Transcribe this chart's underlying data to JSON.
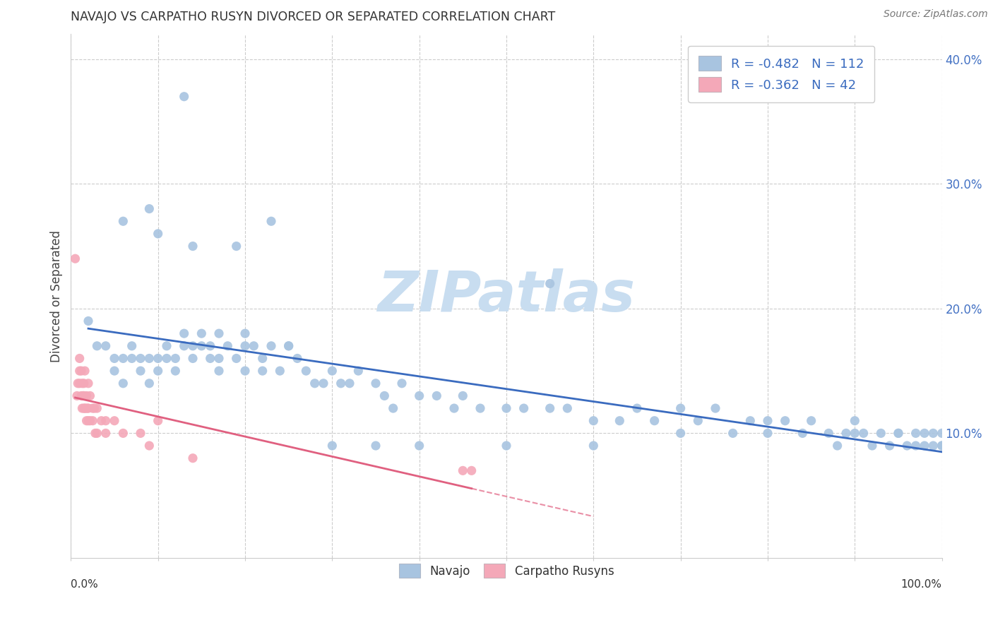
{
  "title": "NAVAJO VS CARPATHO RUSYN DIVORCED OR SEPARATED CORRELATION CHART",
  "source": "Source: ZipAtlas.com",
  "ylabel": "Divorced or Separated",
  "xlim": [
    0.0,
    1.0
  ],
  "ylim": [
    0.0,
    0.42
  ],
  "ytick_vals": [
    0.0,
    0.1,
    0.2,
    0.3,
    0.4
  ],
  "ytick_labels": [
    "",
    "10.0%",
    "20.0%",
    "30.0%",
    "40.0%"
  ],
  "legend_line1": "R = -0.482   N = 112",
  "legend_line2": "R = -0.362   N = 42",
  "navajo_color": "#a8c4e0",
  "rusyn_color": "#f4a8b8",
  "navajo_line_color": "#3a6bbf",
  "rusyn_line_color": "#e06080",
  "grid_color": "#cccccc",
  "background_color": "#ffffff",
  "watermark_color": "#c8ddf0",
  "title_color": "#333333",
  "ytick_color": "#4472c4",
  "source_color": "#777777",
  "navajo_x": [
    0.02,
    0.03,
    0.04,
    0.05,
    0.05,
    0.06,
    0.06,
    0.07,
    0.07,
    0.08,
    0.08,
    0.09,
    0.09,
    0.1,
    0.1,
    0.11,
    0.11,
    0.12,
    0.12,
    0.13,
    0.13,
    0.14,
    0.14,
    0.15,
    0.15,
    0.16,
    0.16,
    0.17,
    0.17,
    0.18,
    0.19,
    0.2,
    0.2,
    0.21,
    0.22,
    0.22,
    0.23,
    0.24,
    0.25,
    0.26,
    0.27,
    0.28,
    0.29,
    0.3,
    0.31,
    0.32,
    0.33,
    0.35,
    0.36,
    0.37,
    0.38,
    0.4,
    0.42,
    0.44,
    0.45,
    0.47,
    0.5,
    0.52,
    0.55,
    0.57,
    0.6,
    0.63,
    0.65,
    0.67,
    0.7,
    0.72,
    0.74,
    0.76,
    0.78,
    0.8,
    0.82,
    0.84,
    0.85,
    0.87,
    0.88,
    0.89,
    0.9,
    0.91,
    0.92,
    0.93,
    0.94,
    0.95,
    0.96,
    0.97,
    0.97,
    0.98,
    0.98,
    0.99,
    0.99,
    1.0,
    1.0,
    1.0,
    0.13,
    0.55,
    0.06,
    0.1,
    0.19,
    0.23,
    0.09,
    0.14,
    0.17,
    0.2,
    0.25,
    0.3,
    0.35,
    0.4,
    0.5,
    0.6,
    0.7,
    0.8,
    0.9,
    0.95
  ],
  "navajo_y": [
    0.19,
    0.17,
    0.17,
    0.15,
    0.16,
    0.16,
    0.14,
    0.16,
    0.17,
    0.15,
    0.16,
    0.14,
    0.16,
    0.16,
    0.15,
    0.16,
    0.17,
    0.16,
    0.15,
    0.17,
    0.18,
    0.17,
    0.16,
    0.18,
    0.17,
    0.17,
    0.16,
    0.16,
    0.15,
    0.17,
    0.16,
    0.17,
    0.15,
    0.17,
    0.16,
    0.15,
    0.17,
    0.15,
    0.17,
    0.16,
    0.15,
    0.14,
    0.14,
    0.15,
    0.14,
    0.14,
    0.15,
    0.14,
    0.13,
    0.12,
    0.14,
    0.13,
    0.13,
    0.12,
    0.13,
    0.12,
    0.12,
    0.12,
    0.12,
    0.12,
    0.11,
    0.11,
    0.12,
    0.11,
    0.12,
    0.11,
    0.12,
    0.1,
    0.11,
    0.1,
    0.11,
    0.1,
    0.11,
    0.1,
    0.09,
    0.1,
    0.11,
    0.1,
    0.09,
    0.1,
    0.09,
    0.1,
    0.09,
    0.1,
    0.09,
    0.09,
    0.1,
    0.09,
    0.1,
    0.09,
    0.1,
    0.09,
    0.37,
    0.22,
    0.27,
    0.26,
    0.25,
    0.27,
    0.28,
    0.25,
    0.18,
    0.18,
    0.17,
    0.09,
    0.09,
    0.09,
    0.09,
    0.09,
    0.1,
    0.11,
    0.1,
    0.1
  ],
  "rusyn_x": [
    0.005,
    0.007,
    0.008,
    0.01,
    0.01,
    0.01,
    0.012,
    0.012,
    0.013,
    0.013,
    0.014,
    0.015,
    0.015,
    0.015,
    0.016,
    0.016,
    0.017,
    0.018,
    0.018,
    0.019,
    0.02,
    0.02,
    0.02,
    0.022,
    0.022,
    0.025,
    0.025,
    0.027,
    0.028,
    0.03,
    0.03,
    0.035,
    0.04,
    0.04,
    0.05,
    0.06,
    0.08,
    0.09,
    0.1,
    0.14,
    0.45,
    0.46
  ],
  "rusyn_y": [
    0.24,
    0.13,
    0.14,
    0.15,
    0.16,
    0.14,
    0.13,
    0.15,
    0.14,
    0.12,
    0.13,
    0.12,
    0.14,
    0.13,
    0.15,
    0.12,
    0.12,
    0.13,
    0.11,
    0.12,
    0.12,
    0.14,
    0.11,
    0.13,
    0.11,
    0.12,
    0.11,
    0.12,
    0.1,
    0.12,
    0.1,
    0.11,
    0.1,
    0.11,
    0.11,
    0.1,
    0.1,
    0.09,
    0.11,
    0.08,
    0.07,
    0.07
  ],
  "rusyn_solid_xrange": [
    0.005,
    0.46
  ],
  "rusyn_dashed_xrange": [
    0.46,
    0.6
  ]
}
